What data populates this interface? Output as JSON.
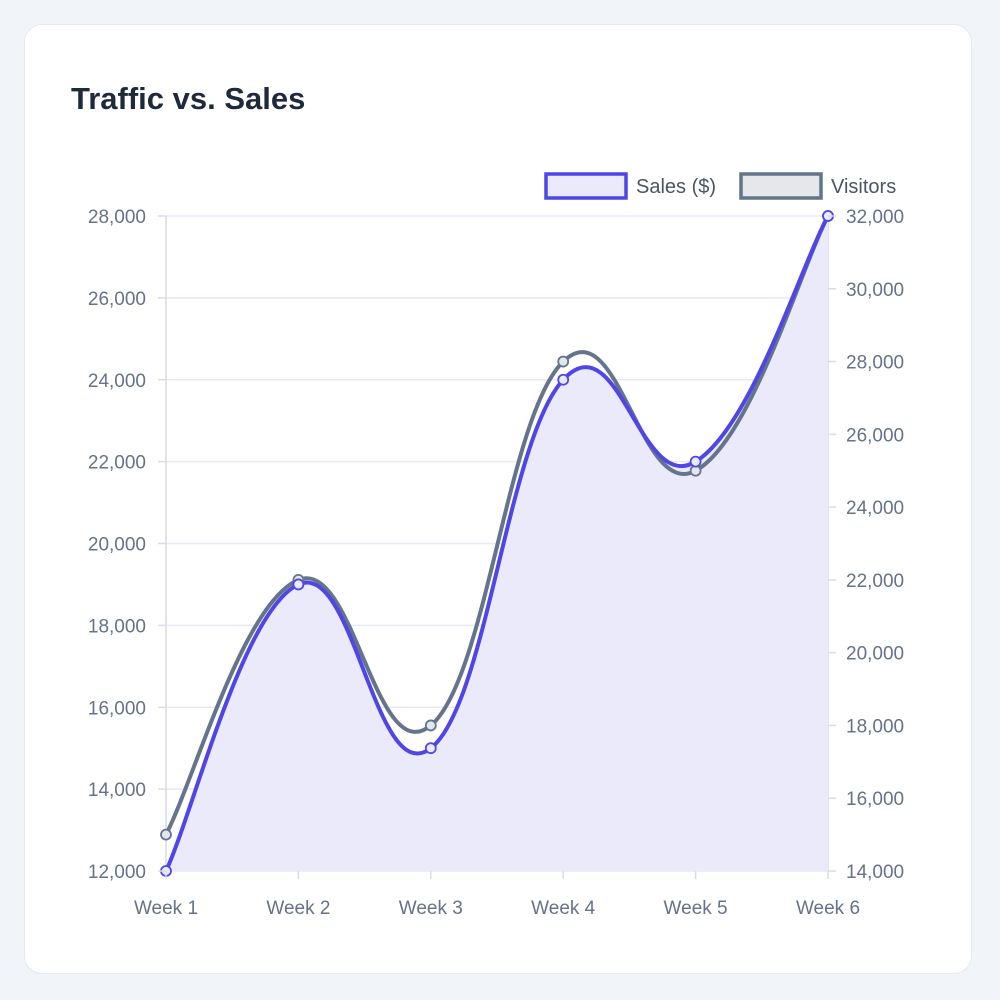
{
  "card": {
    "title": "Traffic vs. Sales"
  },
  "colors": {
    "sales_line": "#4f46e5",
    "sales_fill": "#ebeafb",
    "visitors_line": "#64748b",
    "visitors_legend_fill": "#e5e7eb",
    "grid": "#e8e8f6",
    "axis": "#d9dce6"
  },
  "chart_data": {
    "type": "line",
    "title": "Traffic vs. Sales",
    "xlabel": "",
    "ylabel": "",
    "categories": [
      "Week 1",
      "Week 2",
      "Week 3",
      "Week 4",
      "Week 5",
      "Week 6"
    ],
    "series": [
      {
        "name": "Sales ($)",
        "axis": "left",
        "filled": true,
        "values": [
          12000,
          19000,
          15000,
          24000,
          22000,
          28000
        ]
      },
      {
        "name": "Visitors",
        "axis": "right",
        "filled": false,
        "values": [
          15000,
          22000,
          18000,
          28000,
          25000,
          32000
        ]
      }
    ],
    "y_left": {
      "min": 12000,
      "max": 28000,
      "ticks": [
        "28,000",
        "26,000",
        "24,000",
        "22,000",
        "20,000",
        "18,000",
        "16,000",
        "14,000",
        "12,000"
      ]
    },
    "y_right": {
      "min": 14000,
      "max": 32000,
      "ticks": [
        "32,000",
        "30,000",
        "28,000",
        "26,000",
        "24,000",
        "22,000",
        "20,000",
        "18,000",
        "16,000",
        "14,000"
      ]
    },
    "grid": true,
    "legend": "top-right",
    "curve": "smooth"
  }
}
